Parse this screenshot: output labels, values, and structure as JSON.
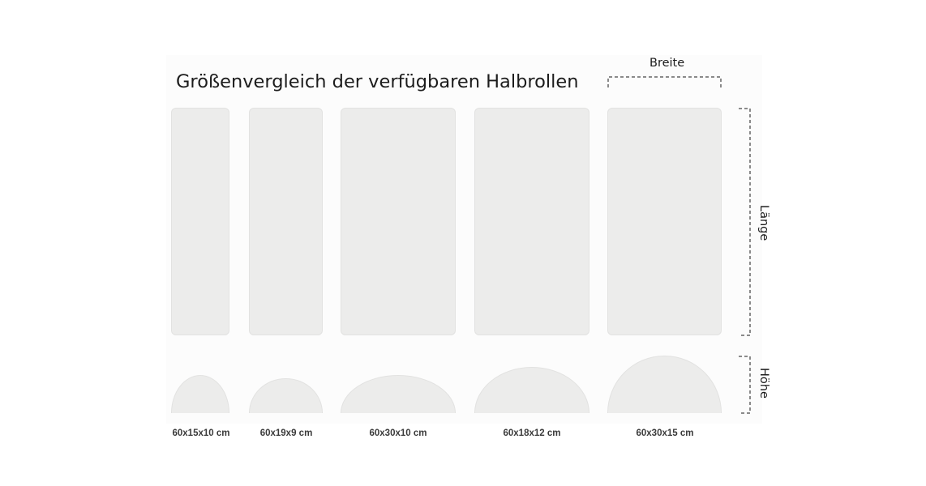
{
  "title": "Größenvergleich der verfügbaren Halbrollen",
  "dimension_labels": {
    "width": "Breite",
    "length": "Länge",
    "height": "Höhe"
  },
  "rolls": [
    {
      "label": "60x15x10 cm",
      "length_cm": 60,
      "width_cm": 15,
      "height_cm": 10
    },
    {
      "label": "60x19x9 cm",
      "length_cm": 60,
      "width_cm": 19,
      "height_cm": 9
    },
    {
      "label": "60x30x10 cm",
      "length_cm": 60,
      "width_cm": 30,
      "height_cm": 10
    },
    {
      "label": "60x18x12 cm",
      "length_cm": 60,
      "width_cm": 18,
      "height_cm": 12
    },
    {
      "label": "60x30x15 cm",
      "length_cm": 60,
      "width_cm": 30,
      "height_cm": 15
    }
  ],
  "colors": {
    "roll_fill": "#ececeb",
    "roll_border": "#e2e2e1",
    "bracket": "#8a8a8a",
    "text": "#1c1c1c"
  }
}
